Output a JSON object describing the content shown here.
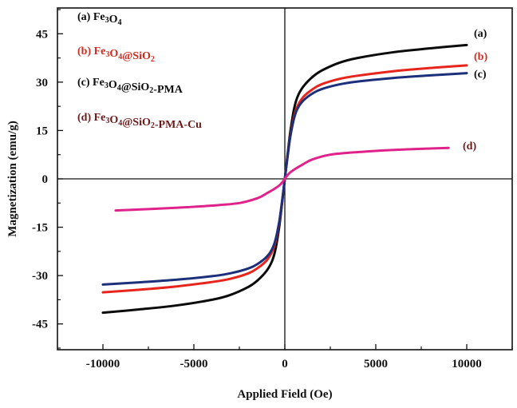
{
  "chart_data": {
    "type": "line",
    "title": "",
    "xlabel": "Applied Field (Oe)",
    "ylabel": "Magnetization (emu/g)",
    "xlim": [
      -12500,
      12500
    ],
    "ylim": [
      -53,
      53
    ],
    "xticks": [
      -10000,
      -5000,
      0,
      5000,
      10000
    ],
    "xtick_labels": [
      "-10000",
      "-5000",
      "0",
      "5000",
      "10000"
    ],
    "yticks": [
      -45,
      -30,
      -15,
      0,
      15,
      30,
      45
    ],
    "ytick_labels": [
      "-45",
      "-30",
      "-15",
      "0",
      "15",
      "30",
      "45"
    ],
    "grid": false,
    "legend_position": "top-left",
    "series": [
      {
        "name": "(a) Fe3O4",
        "legend_parts": [
          {
            "t": "(a) Fe",
            "sub": false
          },
          {
            "t": "3",
            "sub": true
          },
          {
            "t": "O",
            "sub": false
          },
          {
            "t": "4",
            "sub": true
          }
        ],
        "end_label": "(a)",
        "color": "#0a0a0a",
        "label_color": "#0a0a0a",
        "x": [
          -10000,
          -8000,
          -6000,
          -4000,
          -3000,
          -2000,
          -1500,
          -1000,
          -700,
          -500,
          -300,
          -150,
          0,
          150,
          300,
          500,
          700,
          1000,
          1500,
          2000,
          3000,
          4000,
          6000,
          8000,
          10000
        ],
        "y": [
          -41.5,
          -40.5,
          -39.3,
          -37.5,
          -36,
          -33.5,
          -31.5,
          -28.5,
          -25.5,
          -21.5,
          -14.5,
          -7.5,
          0,
          7.5,
          14.5,
          21.5,
          25.5,
          28.5,
          31.5,
          33.5,
          36,
          37.5,
          39.3,
          40.5,
          41.5
        ]
      },
      {
        "name": "(b) Fe3O4@SiO2",
        "legend_parts": [
          {
            "t": "(b) Fe",
            "sub": false
          },
          {
            "t": "3",
            "sub": true
          },
          {
            "t": "O",
            "sub": false
          },
          {
            "t": "4",
            "sub": true
          },
          {
            "t": "@SiO",
            "sub": false
          },
          {
            "t": "2",
            "sub": true
          }
        ],
        "end_label": "(b)",
        "color": "#e8251c",
        "label_color": "#d12a20",
        "x": [
          -10000,
          -8000,
          -6000,
          -4000,
          -3000,
          -2000,
          -1500,
          -1000,
          -700,
          -500,
          -300,
          -150,
          0,
          150,
          300,
          500,
          700,
          1000,
          1500,
          2000,
          3000,
          4000,
          6000,
          8000,
          10000
        ],
        "y": [
          -35.2,
          -34.4,
          -33.4,
          -32,
          -31,
          -29.3,
          -27.7,
          -25.3,
          -22.6,
          -19.2,
          -13.3,
          -7,
          0,
          7,
          13.3,
          19.2,
          22.6,
          25.3,
          27.7,
          29.3,
          31,
          32,
          33.4,
          34.4,
          35.2
        ]
      },
      {
        "name": "(c) Fe3O4@SiO2-PMA",
        "legend_parts": [
          {
            "t": "(c) Fe",
            "sub": false
          },
          {
            "t": "3",
            "sub": true
          },
          {
            "t": "O",
            "sub": false
          },
          {
            "t": "4",
            "sub": true
          },
          {
            "t": "@SiO",
            "sub": false
          },
          {
            "t": "2",
            "sub": true
          },
          {
            "t": "-PMA",
            "sub": false
          }
        ],
        "end_label": "(c)",
        "color": "#1c2f7a",
        "label_color": "#0a0a0a",
        "x": [
          -10000,
          -8000,
          -6000,
          -4000,
          -3000,
          -2000,
          -1500,
          -1000,
          -700,
          -500,
          -300,
          -150,
          0,
          150,
          300,
          500,
          700,
          1000,
          1500,
          2000,
          3000,
          4000,
          6000,
          8000,
          10000
        ],
        "y": [
          -32.8,
          -32.1,
          -31.3,
          -30.2,
          -29.3,
          -27.8,
          -26.4,
          -24.2,
          -21.8,
          -18.6,
          -13,
          -6.8,
          0,
          6.8,
          13,
          18.6,
          21.8,
          24.2,
          26.4,
          27.8,
          29.3,
          30.2,
          31.3,
          32.1,
          32.8
        ]
      },
      {
        "name": "(d) Fe3O4@SiO2-PMA-Cu",
        "legend_parts": [
          {
            "t": "(d) Fe",
            "sub": false
          },
          {
            "t": "3",
            "sub": true
          },
          {
            "t": "O",
            "sub": false
          },
          {
            "t": "4",
            "sub": true
          },
          {
            "t": "@SiO",
            "sub": false
          },
          {
            "t": "2",
            "sub": true
          },
          {
            "t": "-PMA-Cu",
            "sub": false
          }
        ],
        "end_label": "(d)",
        "color": "#e0228a",
        "label_color": "#6b1a1a",
        "x": [
          -9300,
          -6000,
          -4000,
          -2500,
          -1500,
          -1000,
          -600,
          -300,
          -100,
          0,
          100,
          300,
          600,
          1000,
          1500,
          2500,
          4000,
          6000,
          9000
        ],
        "y": [
          -9.8,
          -9,
          -8.3,
          -7.5,
          -6,
          -4.5,
          -3.2,
          -2,
          -0.8,
          0,
          0.8,
          2,
          3.2,
          4.5,
          6,
          7.5,
          8.3,
          9,
          9.6
        ]
      }
    ]
  }
}
